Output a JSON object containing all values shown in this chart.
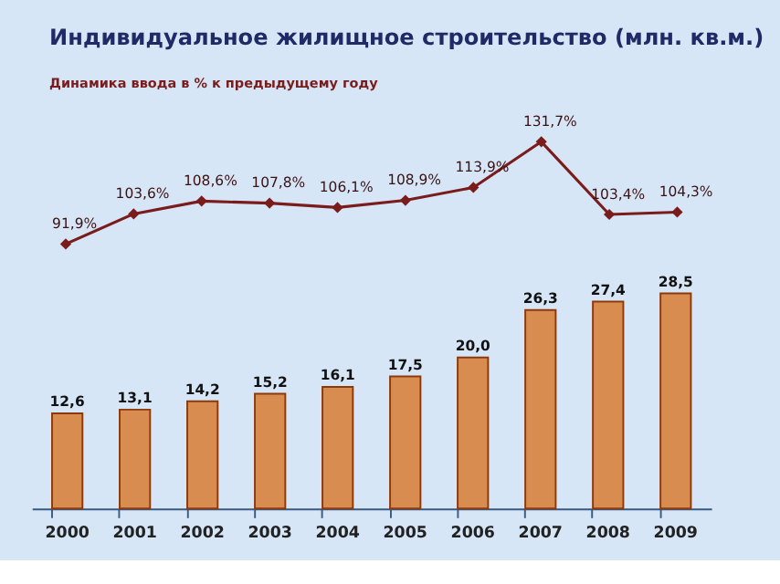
{
  "chart_data": [
    {
      "type": "line",
      "title": "Индивидуальное жилищное строительство (млн. кв.м.)",
      "subtitle": "Динамика ввода в %  к предыдущему году",
      "categories": [
        "2000",
        "2001",
        "2002",
        "2003",
        "2004",
        "2005",
        "2006",
        "2007",
        "2008",
        "2009"
      ],
      "tick_labels": false,
      "marker": "diamond",
      "line_style": "solid",
      "series": [
        {
          "color": "#7b1c1c",
          "values": [
            91.9,
            103.6,
            108.6,
            107.8,
            106.1,
            108.9,
            113.9,
            131.7,
            103.4,
            104.3
          ],
          "value_labels": [
            "91,9%",
            "103,6%",
            "108,6%",
            "107,8%",
            "106,1%",
            "108,9%",
            "113,9%",
            "131,7%",
            "103,4%",
            "104,3%"
          ]
        }
      ]
    },
    {
      "type": "bar",
      "categories": [
        "2000",
        "2001",
        "2002",
        "2003",
        "2004",
        "2005",
        "2006",
        "2007",
        "2008",
        "2009"
      ],
      "series": [
        {
          "color": "#d98c50",
          "values": [
            12.6,
            13.1,
            14.2,
            15.2,
            16.1,
            17.5,
            20.0,
            26.3,
            27.4,
            28.5
          ],
          "value_labels": [
            "12,6",
            "13,1",
            "14,2",
            "15,2",
            "16,1",
            "17,5",
            "20,0",
            "26,3",
            "27,4",
            "28,5"
          ]
        }
      ]
    }
  ]
}
